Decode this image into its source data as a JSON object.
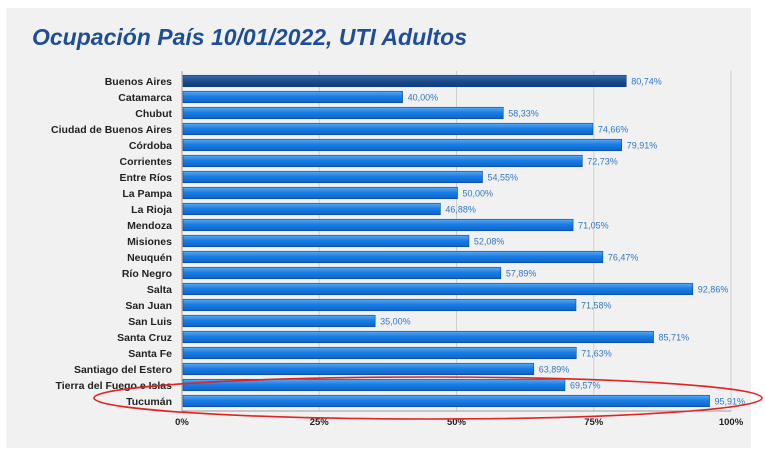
{
  "chart_data": {
    "type": "bar",
    "orientation": "horizontal",
    "title": "Ocupación País 10/01/2022, UTI  Adultos",
    "categories": [
      "Buenos Aires",
      "Catamarca",
      "Chubut",
      "Ciudad de Buenos Aires",
      "Córdoba",
      "Corrientes",
      "Entre Ríos",
      "La Pampa",
      "La Rioja",
      "Mendoza",
      "Misiones",
      "Neuquén",
      "Río Negro",
      "Salta",
      "San Juan",
      "San Luis",
      "Santa Cruz",
      "Santa Fe",
      "Santiago del Estero",
      "Tierra del Fuego e Islas",
      "Tucumán"
    ],
    "values": [
      80.74,
      40.0,
      58.33,
      74.66,
      79.91,
      72.73,
      54.55,
      50.0,
      46.88,
      71.05,
      52.08,
      76.47,
      57.89,
      92.86,
      71.58,
      35.0,
      85.71,
      71.63,
      63.89,
      69.57,
      95.91
    ],
    "value_labels": [
      "80,74%",
      "40,00%",
      "58,33%",
      "74,66%",
      "79,91%",
      "72,73%",
      "54,55%",
      "50,00%",
      "46,88%",
      "71,05%",
      "52,08%",
      "76,47%",
      "57,89%",
      "92,86%",
      "71,58%",
      "35,00%",
      "85,71%",
      "71,63%",
      "63,89%",
      "69,57%",
      "95,91%"
    ],
    "xlim": [
      0,
      100
    ],
    "x_ticks": [
      0,
      25,
      50,
      75,
      100
    ],
    "x_tick_labels": [
      "0%",
      "25%",
      "50%",
      "75%",
      "100%"
    ],
    "grid": true,
    "highlighted_category": "Tucumán",
    "colors": {
      "bar": "#1a7fe6",
      "bar_first": "#1d4c8c",
      "highlight_ellipse": "#e02424",
      "title": "#1f4e96"
    }
  }
}
